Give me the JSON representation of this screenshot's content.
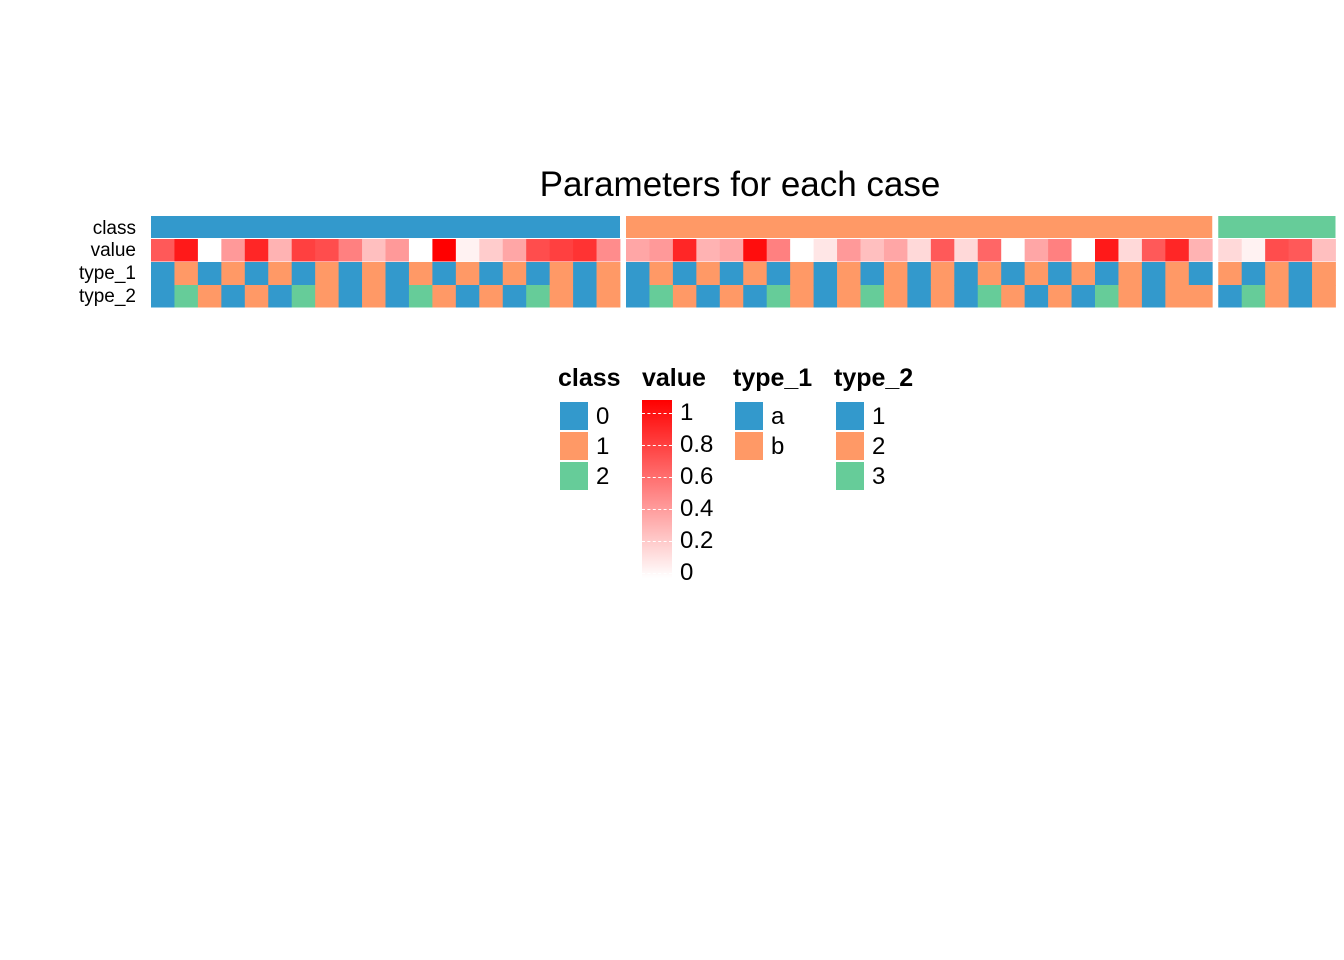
{
  "chart_data": {
    "type": "heatmap",
    "title": "Parameters for each case",
    "rows": [
      "class",
      "value",
      "type_1",
      "type_2"
    ],
    "column_groups": [
      {
        "class": "0",
        "n": 20
      },
      {
        "class": "1",
        "n": 25
      },
      {
        "class": "2",
        "n": 5
      }
    ],
    "value": [
      0.65,
      0.9,
      0.0,
      0.4,
      0.85,
      0.3,
      0.75,
      0.7,
      0.5,
      0.25,
      0.4,
      0.0,
      1.0,
      0.05,
      0.2,
      0.35,
      0.7,
      0.75,
      0.8,
      0.45,
      0.35,
      0.4,
      0.85,
      0.3,
      0.35,
      0.95,
      0.5,
      0.0,
      0.1,
      0.4,
      0.25,
      0.35,
      0.15,
      0.65,
      0.15,
      0.6,
      0.0,
      0.35,
      0.5,
      0.0,
      0.9,
      0.15,
      0.65,
      0.85,
      0.3,
      0.15,
      0.05,
      0.7,
      0.65,
      0.25
    ],
    "type_1": [
      "a",
      "b",
      "a",
      "b",
      "a",
      "b",
      "a",
      "b",
      "a",
      "b",
      "a",
      "b",
      "a",
      "b",
      "a",
      "b",
      "a",
      "b",
      "a",
      "b",
      "a",
      "b",
      "a",
      "b",
      "a",
      "b",
      "a",
      "b",
      "a",
      "b",
      "a",
      "b",
      "a",
      "b",
      "a",
      "b",
      "a",
      "b",
      "a",
      "b",
      "a",
      "b",
      "a",
      "b",
      "a",
      "b",
      "a",
      "b",
      "a",
      "b"
    ],
    "type_2": [
      "1",
      "3",
      "2",
      "1",
      "2",
      "1",
      "3",
      "2",
      "1",
      "2",
      "1",
      "3",
      "2",
      "1",
      "2",
      "1",
      "3",
      "2",
      "1",
      "2",
      "1",
      "3",
      "2",
      "1",
      "2",
      "1",
      "3",
      "2",
      "1",
      "2",
      "3",
      "2",
      "1",
      "2",
      "1",
      "3",
      "2",
      "1",
      "2",
      "1",
      "3",
      "2",
      "1",
      "2",
      "2",
      "1",
      "3",
      "2",
      "1",
      "2"
    ],
    "legends": [
      {
        "title": "class",
        "type": "discrete",
        "items": [
          {
            "label": "0",
            "color": "#3399cc"
          },
          {
            "label": "1",
            "color": "#ff9966"
          },
          {
            "label": "2",
            "color": "#66cc99"
          }
        ]
      },
      {
        "title": "value",
        "type": "continuous",
        "ticks": [
          "1",
          "0.8",
          "0.6",
          "0.4",
          "0.2",
          "0"
        ],
        "range": [
          0,
          1
        ],
        "colors": [
          "#ffffff",
          "#ff0000"
        ]
      },
      {
        "title": "type_1",
        "type": "discrete",
        "items": [
          {
            "label": "a",
            "color": "#3399cc"
          },
          {
            "label": "b",
            "color": "#ff9966"
          }
        ]
      },
      {
        "title": "type_2",
        "type": "discrete",
        "items": [
          {
            "label": "1",
            "color": "#3399cc"
          },
          {
            "label": "2",
            "color": "#ff9966"
          },
          {
            "label": "3",
            "color": "#66cc99"
          }
        ]
      }
    ]
  }
}
